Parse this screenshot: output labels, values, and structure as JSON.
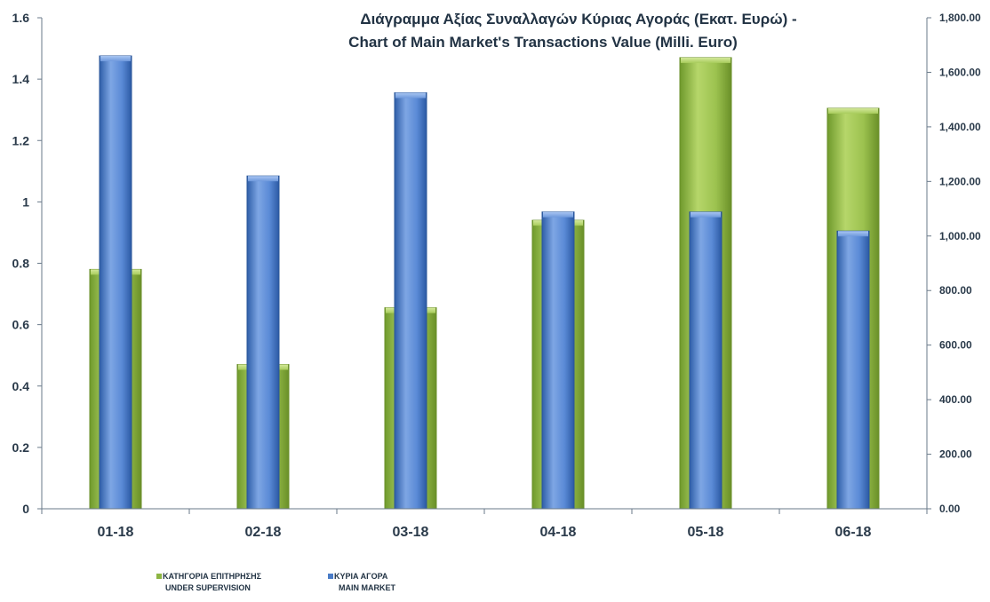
{
  "chart_data": {
    "type": "bar",
    "title": [
      "Διάγραμμα Αξίας Συναλλαγών Κύριας Αγοράς (Εκατ.  Ευρώ) -",
      "Chart of Main Market's Transactions Value (Milli. Euro)"
    ],
    "categories": [
      "01-18",
      "02-18",
      "03-18",
      "04-18",
      "05-18",
      "06-18"
    ],
    "series": [
      {
        "name": [
          "ΚΑΤΗΓΟΡΙΑ ΕΠΙΤΗΡΗΣΗΣ",
          "UNDER SUPERVISION"
        ],
        "axis": "left",
        "values": [
          0.78,
          0.47,
          0.655,
          0.94,
          1.47,
          1.305
        ],
        "color": "#8db543"
      },
      {
        "name": [
          "ΚΥΡΙΑ ΑΓΟΡΑ",
          "MAIN MARKET"
        ],
        "axis": "right",
        "values": [
          1660,
          1220,
          1525,
          1088,
          1088,
          1018
        ],
        "color": "#4a7cc7"
      }
    ],
    "y_left": {
      "lim": [
        0,
        1.6
      ],
      "ticks": [
        "0",
        "0.2",
        "0.4",
        "0.6",
        "0.8",
        "1",
        "1.2",
        "1.4",
        "1.6"
      ]
    },
    "y_right": {
      "lim": [
        0,
        1800
      ],
      "ticks": [
        "0.00",
        "200.00",
        "400.00",
        "600.00",
        "800.00",
        "1,000.00",
        "1,200.00",
        "1,400.00",
        "1,600.00",
        "1,800.00"
      ]
    },
    "grid": false,
    "legend_position": "bottom-left"
  }
}
